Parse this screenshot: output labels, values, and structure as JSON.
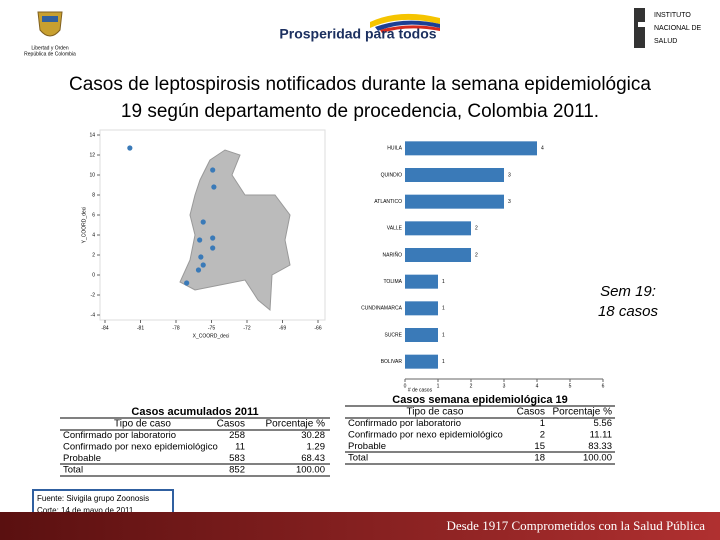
{
  "header": {
    "left_logo": [
      "Libertad y Orden",
      "República de Colombia"
    ],
    "center_logo": "Prosperidad para todos",
    "right_logo": [
      "INSTITUTO",
      "NACIONAL DE",
      "SALUD"
    ]
  },
  "title": [
    "Casos de leptospirosis notificados durante la semana epidemiológica",
    "19 según departamento de procedencia, Colombia 2011."
  ],
  "chart_data": [
    {
      "type": "scatter",
      "xlabel": "X_COORD_deci",
      "ylabel": "Y_COORD_deci",
      "x": [
        -81.9,
        -74.9,
        -74.8,
        -75.7,
        -76.0,
        -74.9,
        -74.9,
        -75.9,
        -75.7,
        -76.1,
        -77.1
      ],
      "values": [
        12.7,
        10.5,
        8.8,
        5.3,
        3.5,
        3.7,
        2.7,
        1.8,
        1.0,
        0.5,
        -0.8
      ],
      "color": "#3a7ab8",
      "xlim": [
        -84,
        -66
      ],
      "xticks": [
        -84,
        -81,
        -78,
        -75,
        -72,
        -69,
        -66
      ],
      "ylim": [
        -4,
        14
      ],
      "yticks": [
        -4,
        -2,
        0,
        2,
        4,
        6,
        8,
        10,
        12,
        14
      ]
    },
    {
      "type": "hbar",
      "xlabel": "# de casos",
      "categories": [
        "HUILA",
        "QUINDIO",
        "ATLANTICO",
        "VALLE",
        "NARIÑO",
        "TOLIMA",
        "CUNDINAMARCA",
        "SUCRE",
        "BOLIVAR"
      ],
      "values": [
        4,
        3,
        3,
        2,
        2,
        1,
        1,
        1,
        1
      ],
      "color": "#3a7ab8",
      "xlim": [
        0,
        6
      ],
      "xticks": [
        0,
        1,
        2,
        3,
        4,
        5,
        6
      ]
    }
  ],
  "note": [
    "Sem 19:",
    "18 casos"
  ],
  "tables": [
    {
      "title": "Casos acumulados 2011",
      "header": [
        "Tipo de caso",
        "Casos",
        "Porcentaje %"
      ],
      "rows": [
        [
          "Confirmado por laboratorio",
          "258",
          "30.28"
        ],
        [
          "Confirmado por nexo epidemiológico",
          "11",
          "1.29"
        ],
        [
          "Probable",
          "583",
          "68.43"
        ],
        [
          "Total",
          "852",
          "100.00"
        ]
      ]
    },
    {
      "title": "Casos semana epidemiológica 19",
      "header": [
        "Tipo de caso",
        "Casos",
        "Porcentaje %"
      ],
      "rows": [
        [
          "Confirmado por laboratorio",
          "1",
          "5.56"
        ],
        [
          "Confirmado por nexo epidemiológico",
          "2",
          "11.11"
        ],
        [
          "Probable",
          "15",
          "83.33"
        ],
        [
          "Total",
          "18",
          "100.00"
        ]
      ]
    }
  ],
  "source": [
    "Fuente: Sivigila grupo Zoonosis",
    "Corte: 14 de mayo de 2011"
  ],
  "footer": "Desde 1917 Comprometidos con la Salud Pública"
}
